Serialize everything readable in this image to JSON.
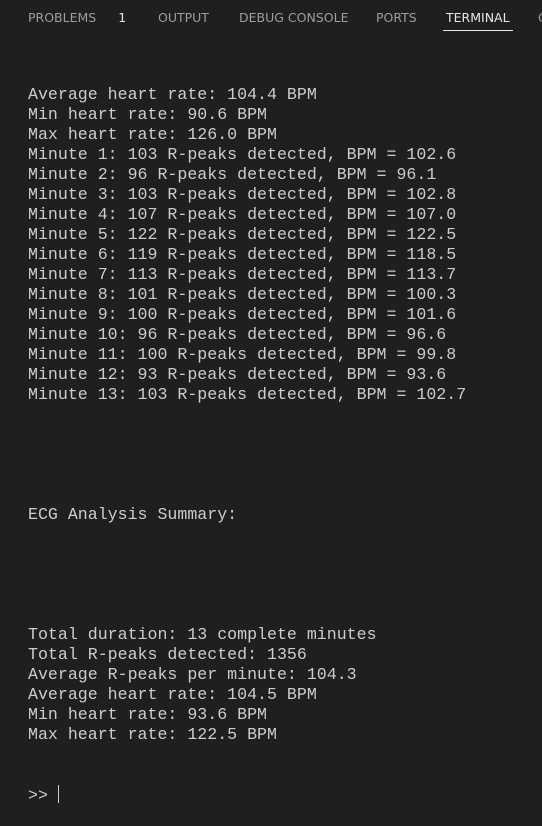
{
  "tabs": [
    {
      "label": "PROBLEMS",
      "badge": "1"
    },
    {
      "label": "OUTPUT"
    },
    {
      "label": "DEBUG CONSOLE"
    },
    {
      "label": "PORTS"
    },
    {
      "label": "TERMINAL",
      "active": true
    },
    {
      "label": "C"
    }
  ],
  "terminal": {
    "output": [
      "Average heart rate: 104.4 BPM",
      "Min heart rate: 90.6 BPM",
      "Max heart rate: 126.0 BPM",
      "Minute 1: 103 R-peaks detected, BPM = 102.6",
      "Minute 2: 96 R-peaks detected, BPM = 96.1",
      "Minute 3: 103 R-peaks detected, BPM = 102.8",
      "Minute 4: 107 R-peaks detected, BPM = 107.0",
      "Minute 5: 122 R-peaks detected, BPM = 122.5",
      "Minute 6: 119 R-peaks detected, BPM = 118.5",
      "Minute 7: 113 R-peaks detected, BPM = 113.7",
      "Minute 8: 101 R-peaks detected, BPM = 100.3",
      "Minute 9: 100 R-peaks detected, BPM = 101.6",
      "Minute 10: 96 R-peaks detected, BPM = 96.6",
      "Minute 11: 100 R-peaks detected, BPM = 99.8",
      "Minute 12: 93 R-peaks detected, BPM = 93.6",
      "Minute 13: 103 R-peaks detected, BPM = 102.7"
    ],
    "summary_heading": "ECG Analysis Summary:",
    "summary": [
      "Total duration: 13 complete minutes",
      "Total R-peaks detected: 1356",
      "Average R-peaks per minute: 104.3",
      "Average heart rate: 104.5 BPM",
      "Min heart rate: 93.6 BPM",
      "Max heart rate: 122.5 BPM"
    ],
    "prompt": ">>"
  }
}
